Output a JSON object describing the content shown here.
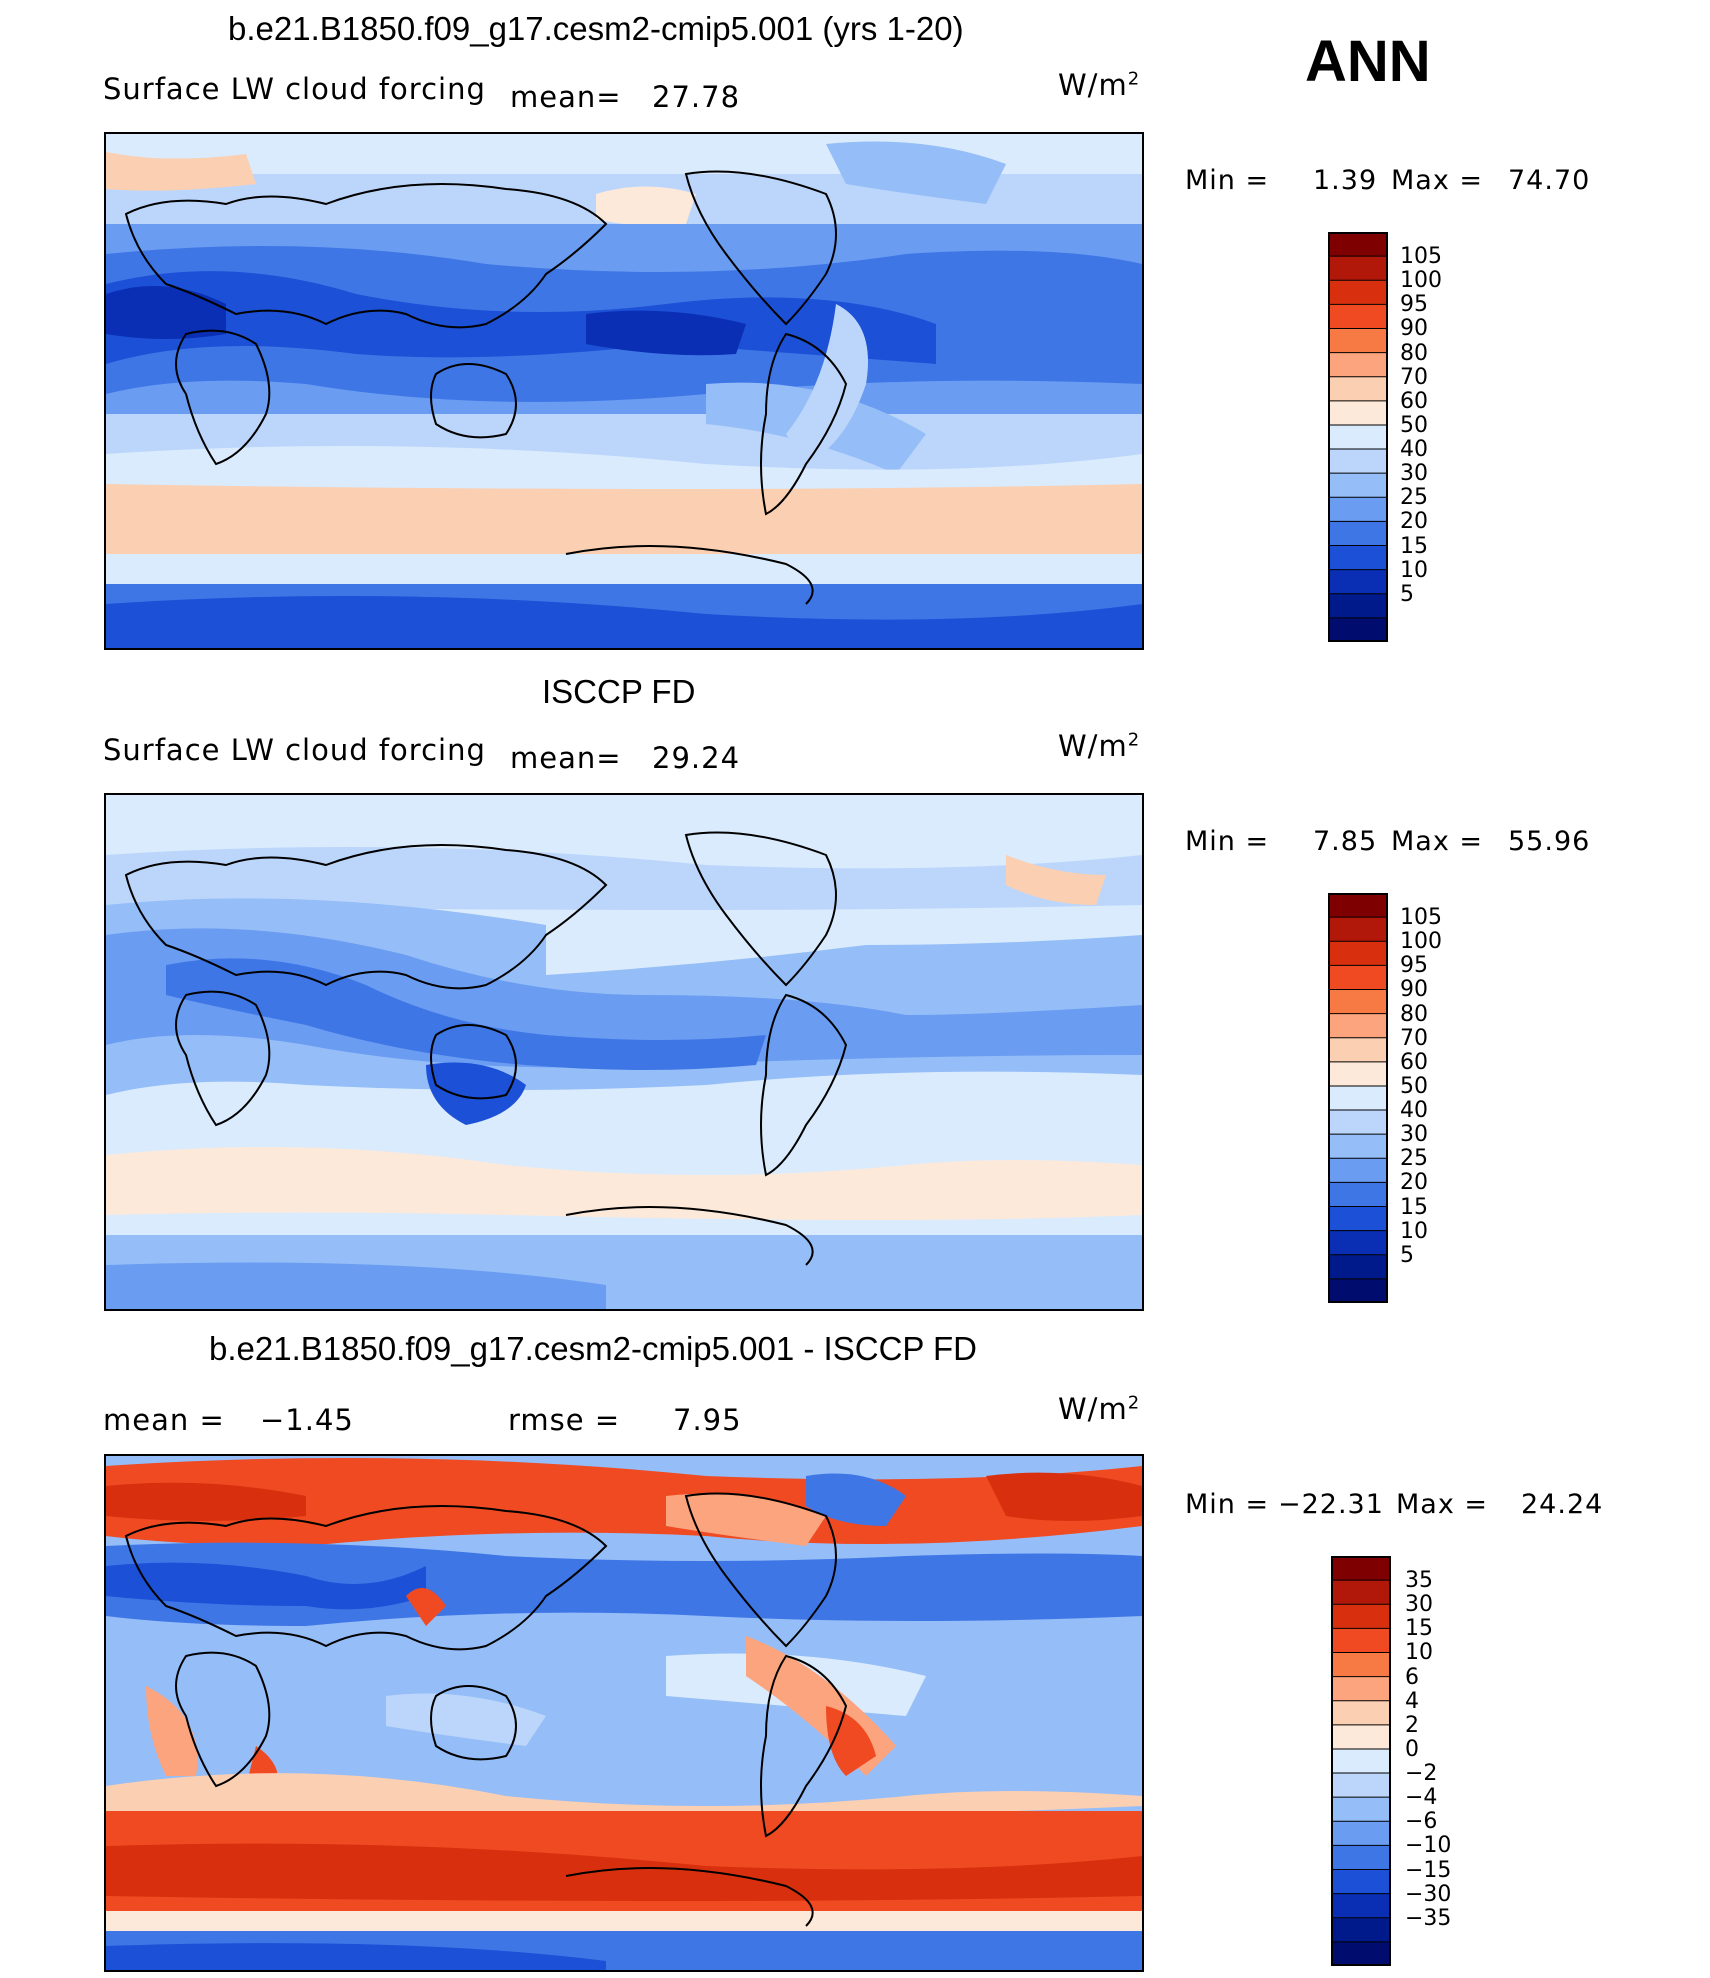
{
  "season": "ANN",
  "panels": [
    {
      "title": "b.e21.B1850.f09_g17.cesm2-cmip5.001 (yrs 1-20)",
      "left_label": "Surface LW cloud forcing",
      "mean_label": "mean=",
      "mean_value": "27.78",
      "units": "W/m",
      "units_sup": "2",
      "min_label": "Min =",
      "min_value": "1.39",
      "max_label": "Max =",
      "max_value": "74.70",
      "colorbar_labels": [
        "105",
        "100",
        "95",
        "90",
        "80",
        "70",
        "60",
        "50",
        "40",
        "30",
        "25",
        "20",
        "15",
        "10",
        "5"
      ]
    },
    {
      "title": "ISCCP FD",
      "left_label": "Surface LW cloud forcing",
      "mean_label": "mean=",
      "mean_value": "29.24",
      "units": "W/m",
      "units_sup": "2",
      "min_label": "Min =",
      "min_value": "7.85",
      "max_label": "Max =",
      "max_value": "55.96",
      "colorbar_labels": [
        "105",
        "100",
        "95",
        "90",
        "80",
        "70",
        "60",
        "50",
        "40",
        "30",
        "25",
        "20",
        "15",
        "10",
        "5"
      ]
    },
    {
      "title": "b.e21.B1850.f09_g17.cesm2-cmip5.001 - ISCCP FD",
      "left_label": "mean =",
      "mean_value": "−1.45",
      "rmse_label": "rmse =",
      "rmse_value": "7.95",
      "units": "W/m",
      "units_sup": "2",
      "min_label": "Min =",
      "min_value": "−22.31",
      "max_label": "Max =",
      "max_value": "24.24",
      "colorbar_labels": [
        "35",
        "30",
        "15",
        "10",
        "6",
        "4",
        "2",
        "0",
        "−2",
        "−4",
        "−6",
        "−10",
        "−15",
        "−30",
        "−35"
      ]
    }
  ],
  "colors": {
    "field_cmap": [
      "#7f0000",
      "#b2180a",
      "#d8300e",
      "#ef4a22",
      "#f77a44",
      "#fca47e",
      "#fbcfb2",
      "#fde9da",
      "#d9ebfd",
      "#bcd6fb",
      "#95bdf7",
      "#6a9cf1",
      "#3f76e6",
      "#1c50d6",
      "#0a2fb5",
      "#001a8c",
      "#000c6e"
    ],
    "diff_cmap": [
      "#7f0000",
      "#b2180a",
      "#d8300e",
      "#ef4a22",
      "#f77a44",
      "#fca47e",
      "#fbcfb2",
      "#fde9da",
      "#d9ebfd",
      "#bcd6fb",
      "#95bdf7",
      "#6a9cf1",
      "#3f76e6",
      "#1c50d6",
      "#0a2fb5",
      "#001a8c",
      "#000c6e"
    ]
  }
}
